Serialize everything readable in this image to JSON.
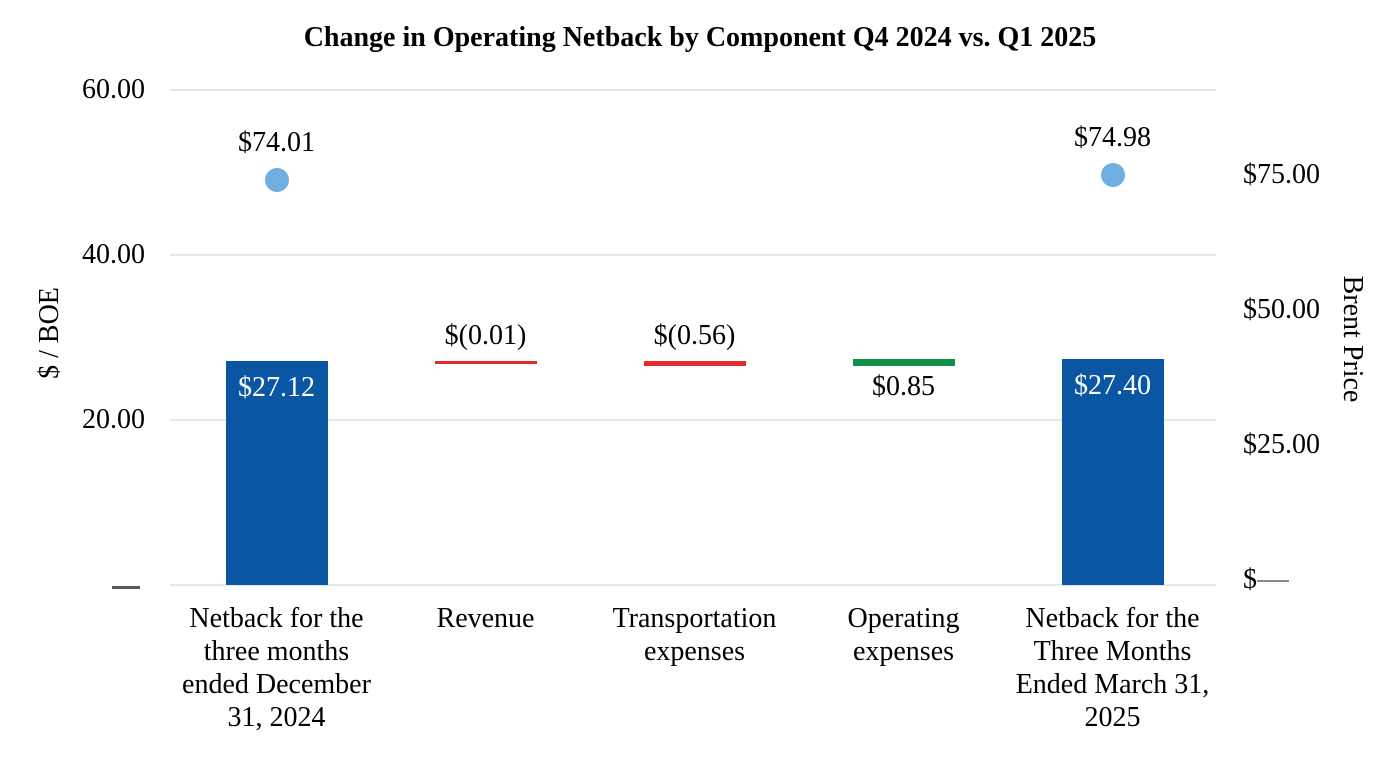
{
  "chart_data": {
    "type": "bar",
    "subtype": "waterfall-with-scatter-markers",
    "title": "Change in Operating Netback by Component Q4 2024 vs. Q1 2025",
    "grid": "horizontal",
    "legend": null,
    "left_axis": {
      "title": "$ / BOE",
      "range": [
        0,
        60
      ],
      "ticks": [
        {
          "label": "60.00",
          "value": 60
        },
        {
          "label": "40.00",
          "value": 40
        },
        {
          "label": "20.00",
          "value": 20
        },
        {
          "label": "—",
          "value": 0
        }
      ]
    },
    "right_axis": {
      "title": "Brent Price",
      "range": [
        0,
        75
      ],
      "ticks": [
        {
          "label": "$75.00",
          "value": 75
        },
        {
          "label": "$50.00",
          "value": 50
        },
        {
          "label": "$25.00",
          "value": 25
        },
        {
          "label": "$—",
          "value": 0
        }
      ]
    },
    "categories": [
      "Netback for the three months ended December 31, 2024",
      "Revenue",
      "Transportation expenses",
      "Operating expenses",
      "Netback for the Three Months Ended March 31, 2025"
    ],
    "bars": [
      {
        "category_lines": [
          "Netback for the",
          "three months",
          "ended December",
          "31, 2024"
        ],
        "kind": "total",
        "start": 0,
        "end": 27.12,
        "value": 27.12,
        "label": "$27.12",
        "label_placement": "inside-top"
      },
      {
        "category_lines": [
          "Revenue"
        ],
        "kind": "decrease",
        "start": 27.12,
        "end": 27.11,
        "value": -0.01,
        "label": "$(0.01)",
        "label_placement": "above"
      },
      {
        "category_lines": [
          "Transportation",
          "expenses"
        ],
        "kind": "decrease",
        "start": 27.11,
        "end": 26.55,
        "value": -0.56,
        "label": "$(0.56)",
        "label_placement": "above"
      },
      {
        "category_lines": [
          "Operating",
          "expenses"
        ],
        "kind": "increase",
        "start": 26.55,
        "end": 27.4,
        "value": 0.85,
        "label": "$0.85",
        "label_placement": "below"
      },
      {
        "category_lines": [
          "Netback for the",
          "Three Months",
          "Ended March 31,",
          "2025"
        ],
        "kind": "total",
        "start": 0,
        "end": 27.4,
        "value": 27.4,
        "label": "$27.40",
        "label_placement": "inside-top"
      }
    ],
    "markers": [
      {
        "bar_index": 0,
        "axis": "right",
        "value": 74.01,
        "label": "$74.01"
      },
      {
        "bar_index": 4,
        "axis": "right",
        "value": 74.98,
        "label": "$74.98"
      }
    ],
    "colors": {
      "total_bar": "#0b56a3",
      "decrease_bar": "#e22b2a",
      "increase_bar": "#109049",
      "marker": "#6faede",
      "gridline": "#e7e7e7",
      "zero_tick_dash": "#58585a",
      "bar_label_inside": "#ffffff",
      "text": "#000000"
    }
  }
}
